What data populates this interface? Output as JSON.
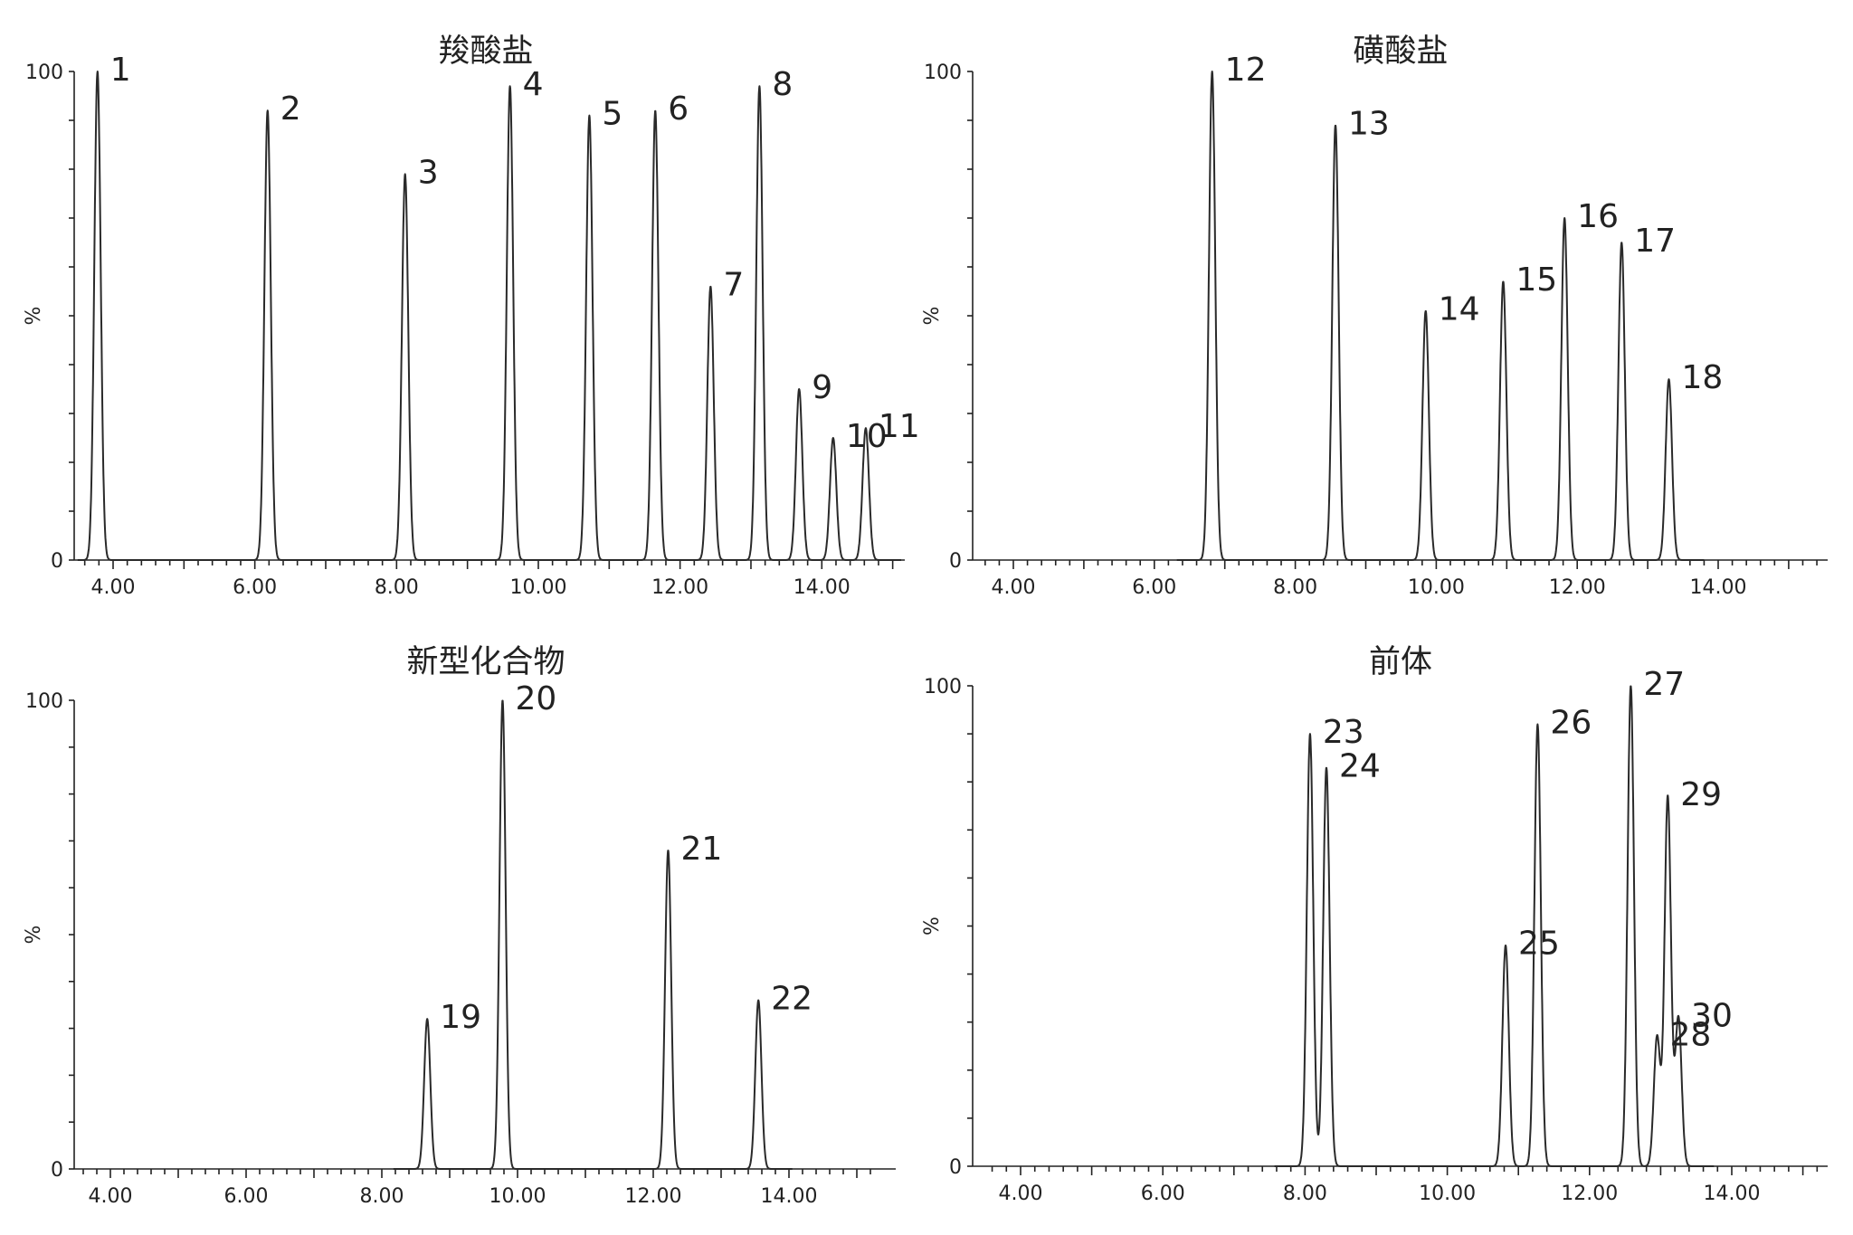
{
  "figure": {
    "panels": [
      {
        "title": "羧酸盐",
        "xlabel": "",
        "ylabel": "%",
        "xticks": [
          "4.00",
          "6.00",
          "8.00",
          "10.00",
          "12.00",
          "14.00"
        ],
        "yticks": [
          "0",
          "100"
        ],
        "peaks": [
          {
            "label": "1",
            "x": 3.78,
            "y": 100
          },
          {
            "label": "2",
            "x": 6.18,
            "y": 92
          },
          {
            "label": "3",
            "x": 8.12,
            "y": 79
          },
          {
            "label": "4",
            "x": 9.6,
            "y": 97
          },
          {
            "label": "5",
            "x": 10.72,
            "y": 91
          },
          {
            "label": "6",
            "x": 11.65,
            "y": 92
          },
          {
            "label": "7",
            "x": 12.43,
            "y": 56
          },
          {
            "label": "8",
            "x": 13.12,
            "y": 97
          },
          {
            "label": "9",
            "x": 13.68,
            "y": 35
          },
          {
            "label": "10",
            "x": 14.16,
            "y": 25
          },
          {
            "label": "11",
            "x": 14.62,
            "y": 27
          }
        ]
      },
      {
        "title": "磺酸盐",
        "xlabel": "",
        "ylabel": "%",
        "xticks": [
          "4.00",
          "6.00",
          "8.00",
          "10.00",
          "12.00",
          "14.00"
        ],
        "yticks": [
          "0",
          "100"
        ],
        "peaks": [
          {
            "label": "12",
            "x": 6.82,
            "y": 100
          },
          {
            "label": "13",
            "x": 8.57,
            "y": 89
          },
          {
            "label": "14",
            "x": 9.85,
            "y": 51
          },
          {
            "label": "15",
            "x": 10.95,
            "y": 57
          },
          {
            "label": "16",
            "x": 11.82,
            "y": 70
          },
          {
            "label": "17",
            "x": 12.63,
            "y": 65
          },
          {
            "label": "18",
            "x": 13.3,
            "y": 37
          }
        ]
      },
      {
        "title": "新型化合物",
        "xlabel": "",
        "ylabel": "%",
        "xticks": [
          "4.00",
          "6.00",
          "8.00",
          "10.00",
          "12.00",
          "14.00"
        ],
        "yticks": [
          "0",
          "100"
        ],
        "peaks": [
          {
            "label": "19",
            "x": 8.67,
            "y": 32
          },
          {
            "label": "20",
            "x": 9.78,
            "y": 100
          },
          {
            "label": "21",
            "x": 12.22,
            "y": 68
          },
          {
            "label": "22",
            "x": 13.55,
            "y": 36
          }
        ]
      },
      {
        "title": "前体",
        "xlabel": "",
        "ylabel": "%",
        "xticks": [
          "4.00",
          "6.00",
          "8.00",
          "10.00",
          "12.00",
          "14.00"
        ],
        "yticks": [
          "0",
          "100"
        ],
        "peaks": [
          {
            "label": "23",
            "x": 8.07,
            "y": 90
          },
          {
            "label": "24",
            "x": 8.3,
            "y": 83
          },
          {
            "label": "25",
            "x": 10.82,
            "y": 46
          },
          {
            "label": "26",
            "x": 11.27,
            "y": 92
          },
          {
            "label": "27",
            "x": 12.58,
            "y": 100
          },
          {
            "label": "28",
            "x": 12.95,
            "y": 27
          },
          {
            "label": "29",
            "x": 13.1,
            "y": 77
          },
          {
            "label": "30",
            "x": 13.25,
            "y": 31
          }
        ]
      }
    ]
  },
  "chart_data": [
    {
      "type": "line",
      "title": "羧酸盐",
      "xlabel": "",
      "ylabel": "%",
      "xlim": [
        3.5,
        15.2
      ],
      "ylim": [
        0,
        100
      ],
      "grid": false,
      "peaks": [
        {
          "label": "1",
          "x": 3.78,
          "y": 100
        },
        {
          "label": "2",
          "x": 6.18,
          "y": 92
        },
        {
          "label": "3",
          "x": 8.12,
          "y": 79
        },
        {
          "label": "4",
          "x": 9.6,
          "y": 97
        },
        {
          "label": "5",
          "x": 10.72,
          "y": 91
        },
        {
          "label": "6",
          "x": 11.65,
          "y": 92
        },
        {
          "label": "7",
          "x": 12.43,
          "y": 56
        },
        {
          "label": "8",
          "x": 13.12,
          "y": 97
        },
        {
          "label": "9",
          "x": 13.68,
          "y": 35
        },
        {
          "label": "10",
          "x": 14.16,
          "y": 25
        },
        {
          "label": "11",
          "x": 14.62,
          "y": 27
        }
      ]
    },
    {
      "type": "line",
      "title": "磺酸盐",
      "xlabel": "",
      "ylabel": "%",
      "xlim": [
        3.5,
        15.5
      ],
      "ylim": [
        0,
        100
      ],
      "grid": false,
      "peaks": [
        {
          "label": "12",
          "x": 6.82,
          "y": 100
        },
        {
          "label": "13",
          "x": 8.57,
          "y": 89
        },
        {
          "label": "14",
          "x": 9.85,
          "y": 51
        },
        {
          "label": "15",
          "x": 10.95,
          "y": 57
        },
        {
          "label": "16",
          "x": 11.82,
          "y": 70
        },
        {
          "label": "17",
          "x": 12.63,
          "y": 65
        },
        {
          "label": "18",
          "x": 13.3,
          "y": 37
        }
      ]
    },
    {
      "type": "line",
      "title": "新型化合物",
      "xlabel": "",
      "ylabel": "%",
      "xlim": [
        3.5,
        15.3
      ],
      "ylim": [
        0,
        100
      ],
      "grid": false,
      "peaks": [
        {
          "label": "19",
          "x": 8.67,
          "y": 32
        },
        {
          "label": "20",
          "x": 9.78,
          "y": 100
        },
        {
          "label": "21",
          "x": 12.22,
          "y": 68
        },
        {
          "label": "22",
          "x": 13.55,
          "y": 36
        }
      ]
    },
    {
      "type": "line",
      "title": "前体",
      "xlabel": "",
      "ylabel": "%",
      "xlim": [
        3.5,
        15.5
      ],
      "ylim": [
        0,
        100
      ],
      "grid": false,
      "peaks": [
        {
          "label": "23",
          "x": 8.07,
          "y": 90
        },
        {
          "label": "24",
          "x": 8.3,
          "y": 83
        },
        {
          "label": "25",
          "x": 10.82,
          "y": 46
        },
        {
          "label": "26",
          "x": 11.27,
          "y": 92
        },
        {
          "label": "27",
          "x": 12.58,
          "y": 100
        },
        {
          "label": "28",
          "x": 12.95,
          "y": 27
        },
        {
          "label": "29",
          "x": 13.1,
          "y": 77
        },
        {
          "label": "30",
          "x": 13.25,
          "y": 31
        }
      ]
    }
  ]
}
